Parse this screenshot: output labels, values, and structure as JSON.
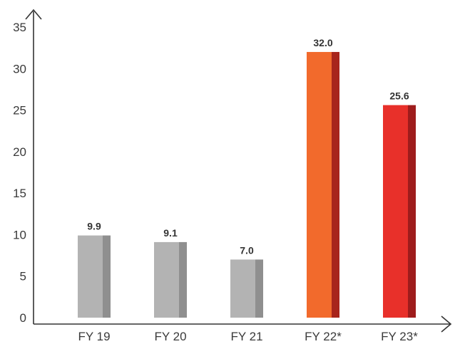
{
  "chart_data": {
    "type": "bar",
    "categories": [
      "FY 19",
      "FY 20",
      "FY 21",
      "FY 22*",
      "FY 23*"
    ],
    "values": [
      9.9,
      9.1,
      7.0,
      32.0,
      25.6
    ],
    "value_labels": [
      "9.9",
      "9.1",
      "7.0",
      "32.0",
      "25.6"
    ],
    "yticks": [
      "0",
      "5",
      "10",
      "15",
      "20",
      "25",
      "30",
      "35"
    ],
    "ylim": [
      0,
      35
    ],
    "grid": false,
    "title": "",
    "xlabel": "",
    "ylabel": "",
    "colors": {
      "gray_front": "#b3b3b3",
      "gray_side": "#8f8f8f",
      "orange_front": "#f26a2c",
      "orange_side": "#a8251c",
      "red_front": "#e8302a",
      "red_side": "#9e1c1c"
    },
    "bar_color_keys": [
      "gray",
      "gray",
      "gray",
      "orange",
      "red"
    ]
  }
}
